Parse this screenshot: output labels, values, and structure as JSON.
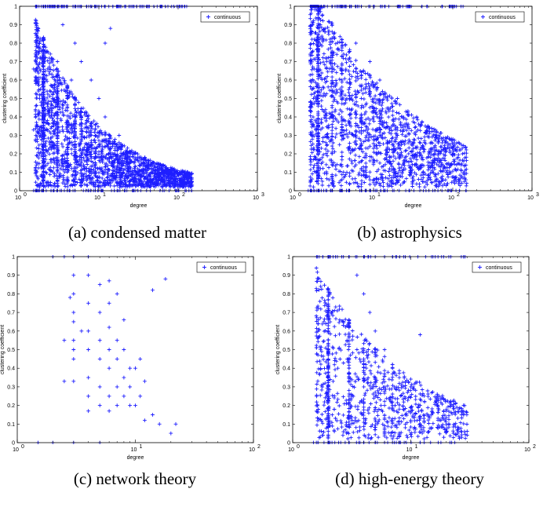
{
  "chart_data": [
    {
      "type": "scatter",
      "caption": "(a)  condensed matter",
      "xlabel": "degree",
      "ylabel": "clustering coefficient",
      "xscale": "log",
      "xlim": [
        1,
        1000
      ],
      "ylim": [
        0,
        1
      ],
      "xticks": [
        "10",
        "10",
        "10",
        "10"
      ],
      "xtick_exponents": [
        "0",
        "1",
        "2",
        "3"
      ],
      "yticks": [
        "0",
        "0.1",
        "0.2",
        "0.3",
        "0.4",
        "0.5",
        "0.6",
        "0.7",
        "0.8",
        "0.9",
        "1"
      ],
      "legend": "top-right",
      "series": [
        {
          "name": "continuous",
          "color": "#1f1fff",
          "marker": "+",
          "points": [
            [
              1.5,
              0
            ],
            [
              2,
              0
            ],
            [
              3,
              0
            ],
            [
              5,
              0
            ],
            [
              1.6,
              1
            ],
            [
              2,
              1
            ],
            [
              2.5,
              1
            ],
            [
              3,
              1
            ],
            [
              3.5,
              1
            ],
            [
              4,
              1
            ],
            [
              1.5,
              0.66
            ],
            [
              1.8,
              0.66
            ],
            [
              2,
              0.5
            ],
            [
              1.5,
              0.33
            ],
            [
              2,
              0.33
            ],
            [
              3,
              0.33
            ],
            [
              4,
              0.5
            ],
            [
              5,
              0.4
            ],
            [
              6,
              0.35
            ],
            [
              8,
              0.3
            ],
            [
              10,
              0.25
            ],
            [
              15,
              0.2
            ],
            [
              20,
              0.15
            ],
            [
              30,
              0.1
            ],
            [
              50,
              0.08
            ],
            [
              80,
              0.05
            ],
            [
              120,
              0.04
            ],
            [
              150,
              0.03
            ],
            [
              5,
              0.8
            ],
            [
              6,
              0.7
            ],
            [
              8,
              0.6
            ],
            [
              10,
              0.5
            ],
            [
              12,
              0.4
            ],
            [
              18,
              0.3
            ],
            [
              25,
              0.2
            ],
            [
              40,
              0.15
            ],
            [
              7,
              0.2
            ],
            [
              9,
              0.15
            ],
            [
              12,
              0.1
            ],
            [
              4,
              0.25
            ],
            [
              3,
              0.7
            ],
            [
              3.5,
              0.9
            ],
            [
              4.5,
              0.6
            ],
            [
              14,
              0.88
            ],
            [
              12,
              0.8
            ]
          ]
        }
      ]
    },
    {
      "type": "scatter",
      "caption": "(b)  astrophysics",
      "xlabel": "degree",
      "ylabel": "clustering coefficient",
      "xscale": "log",
      "xlim": [
        1,
        1000
      ],
      "ylim": [
        0,
        1
      ],
      "xticks": [
        "10",
        "10",
        "10",
        "10"
      ],
      "xtick_exponents": [
        "0",
        "1",
        "2",
        "3"
      ],
      "yticks": [
        "0",
        "0.1",
        "0.2",
        "0.3",
        "0.4",
        "0.5",
        "0.6",
        "0.7",
        "0.8",
        "0.9",
        "1"
      ],
      "legend": "top-right",
      "series": [
        {
          "name": "continuous",
          "color": "#1f1fff",
          "marker": "+",
          "points": [
            [
              1.5,
              0
            ],
            [
              2,
              0
            ],
            [
              3,
              0
            ],
            [
              1.8,
              1
            ],
            [
              2.2,
              1
            ],
            [
              3,
              1
            ],
            [
              4,
              1
            ],
            [
              5,
              1
            ],
            [
              2,
              0.5
            ],
            [
              2,
              0.33
            ],
            [
              3,
              0.66
            ],
            [
              4,
              0.6
            ],
            [
              5,
              0.5
            ],
            [
              7,
              0.45
            ],
            [
              10,
              0.4
            ],
            [
              15,
              0.35
            ],
            [
              20,
              0.3
            ],
            [
              30,
              0.25
            ],
            [
              50,
              0.2
            ],
            [
              80,
              0.12
            ],
            [
              120,
              0.06
            ],
            [
              150,
              0.04
            ],
            [
              6,
              0.8
            ],
            [
              9,
              0.7
            ],
            [
              12,
              0.6
            ],
            [
              20,
              0.5
            ],
            [
              35,
              0.4
            ],
            [
              60,
              0.3
            ],
            [
              8,
              0.2
            ],
            [
              12,
              0.15
            ],
            [
              18,
              0.1
            ]
          ]
        }
      ]
    },
    {
      "type": "scatter",
      "caption": "(c)  network theory",
      "xlabel": "degree",
      "ylabel": "clustering coefficient",
      "xscale": "log",
      "xlim": [
        1,
        100
      ],
      "ylim": [
        0,
        1
      ],
      "xticks": [
        "10",
        "10",
        "10"
      ],
      "xtick_exponents": [
        "0",
        "1",
        "2"
      ],
      "yticks": [
        "0",
        "0.1",
        "0.2",
        "0.3",
        "0.4",
        "0.5",
        "0.6",
        "0.7",
        "0.8",
        "0.9",
        "1"
      ],
      "legend": "top-right",
      "series": [
        {
          "name": "continuous",
          "color": "#1f1fff",
          "marker": "+",
          "points": [
            [
              1.5,
              0
            ],
            [
              2,
              0
            ],
            [
              3,
              0
            ],
            [
              5,
              0
            ],
            [
              2,
              1
            ],
            [
              2.5,
              1
            ],
            [
              3,
              1
            ],
            [
              4,
              1
            ],
            [
              3,
              0.9
            ],
            [
              3,
              0.8
            ],
            [
              3,
              0.7
            ],
            [
              3,
              0.65
            ],
            [
              3,
              0.55
            ],
            [
              3,
              0.5
            ],
            [
              3,
              0.45
            ],
            [
              3,
              0.33
            ],
            [
              2.5,
              0.33
            ],
            [
              4,
              0.9
            ],
            [
              4,
              0.75
            ],
            [
              4,
              0.6
            ],
            [
              4,
              0.5
            ],
            [
              4,
              0.35
            ],
            [
              4,
              0.25
            ],
            [
              4,
              0.17
            ],
            [
              5,
              0.85
            ],
            [
              5,
              0.7
            ],
            [
              5,
              0.55
            ],
            [
              5,
              0.45
            ],
            [
              5,
              0.3
            ],
            [
              5,
              0.2
            ],
            [
              6,
              0.75
            ],
            [
              6,
              0.62
            ],
            [
              6,
              0.5
            ],
            [
              6,
              0.4
            ],
            [
              6,
              0.25
            ],
            [
              6,
              0.17
            ],
            [
              7,
              0.8
            ],
            [
              7,
              0.55
            ],
            [
              7,
              0.45
            ],
            [
              7,
              0.3
            ],
            [
              7,
              0.2
            ],
            [
              8,
              0.5
            ],
            [
              8,
              0.35
            ],
            [
              8,
              0.25
            ],
            [
              9,
              0.3
            ],
            [
              9,
              0.2
            ],
            [
              10,
              0.4
            ],
            [
              10,
              0.2
            ],
            [
              11,
              0.45
            ],
            [
              11,
              0.25
            ],
            [
              12,
              0.12
            ],
            [
              14,
              0.15
            ],
            [
              16,
              0.1
            ],
            [
              18,
              0.88
            ],
            [
              20,
              0.05
            ],
            [
              22,
              0.1
            ],
            [
              14,
              0.82
            ],
            [
              8,
              0.66
            ],
            [
              6,
              0.87
            ],
            [
              3.5,
              0.6
            ],
            [
              2.8,
              0.78
            ],
            [
              2.5,
              0.55
            ],
            [
              9,
              0.4
            ],
            [
              12,
              0.33
            ]
          ]
        }
      ]
    },
    {
      "type": "scatter",
      "caption": "(d)  high-energy theory",
      "xlabel": "degree",
      "ylabel": "clustering coefficient",
      "xscale": "log",
      "xlim": [
        1,
        100
      ],
      "ylim": [
        0,
        1
      ],
      "xticks": [
        "10",
        "10",
        "10"
      ],
      "xtick_exponents": [
        "0",
        "1",
        "2"
      ],
      "yticks": [
        "0",
        "0.1",
        "0.2",
        "0.3",
        "0.4",
        "0.5",
        "0.6",
        "0.7",
        "0.8",
        "0.9",
        "1"
      ],
      "legend": "top-right",
      "series": [
        {
          "name": "continuous",
          "color": "#1f1fff",
          "marker": "+",
          "points": [
            [
              1.5,
              0
            ],
            [
              2,
              0
            ],
            [
              3,
              0
            ],
            [
              5,
              0
            ],
            [
              8,
              0
            ],
            [
              12,
              0
            ],
            [
              1.8,
              1
            ],
            [
              2.2,
              1
            ],
            [
              2.6,
              1
            ],
            [
              3,
              1
            ],
            [
              3.5,
              1
            ],
            [
              2,
              0.5
            ],
            [
              2.2,
              0.33
            ],
            [
              2.5,
              0.66
            ],
            [
              3,
              0.66
            ],
            [
              3,
              0.4
            ],
            [
              3.5,
              0.5
            ],
            [
              4,
              0.45
            ],
            [
              4,
              0.3
            ],
            [
              5,
              0.35
            ],
            [
              5,
              0.25
            ],
            [
              6,
              0.3
            ],
            [
              6,
              0.2
            ],
            [
              7,
              0.2
            ],
            [
              8,
              0.18
            ],
            [
              9,
              0.15
            ],
            [
              10,
              0.12
            ],
            [
              12,
              0.1
            ],
            [
              15,
              0.08
            ],
            [
              20,
              0.06
            ],
            [
              25,
              0.05
            ],
            [
              30,
              0.04
            ],
            [
              4,
              0.8
            ],
            [
              5,
              0.6
            ],
            [
              6,
              0.5
            ],
            [
              7,
              0.4
            ],
            [
              8,
              0.35
            ],
            [
              10,
              0.3
            ],
            [
              12,
              0.2
            ],
            [
              15,
              0.15
            ],
            [
              18,
              0.12
            ],
            [
              12,
              0.58
            ],
            [
              3.5,
              0.9
            ],
            [
              4.5,
              0.7
            ]
          ]
        }
      ]
    }
  ]
}
